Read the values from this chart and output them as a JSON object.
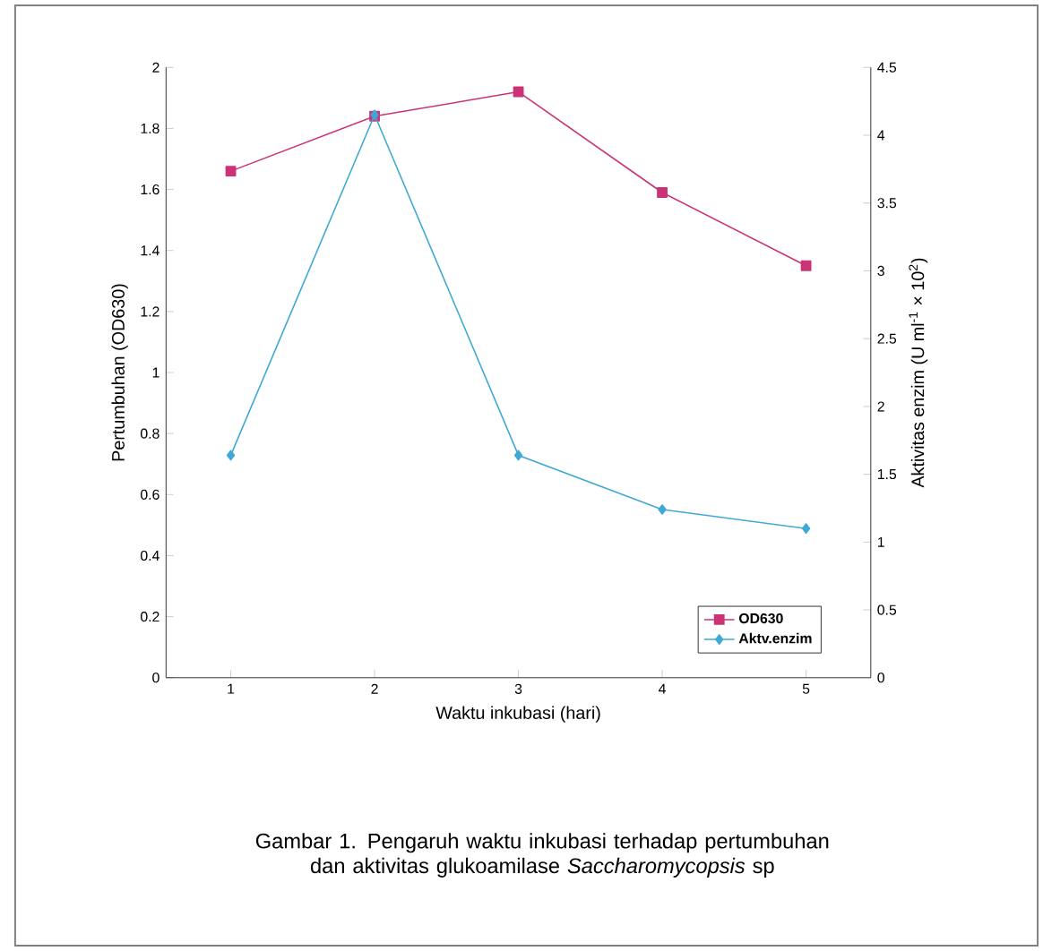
{
  "chart_data": {
    "type": "line",
    "xlabel": "Waktu inkubasi (hari)",
    "ylabel": "Pertumbuhan (OD630)",
    "y2label": "Aktivitas enzim (U ml$^{-1}$ × 10$^{2}$)",
    "categories": [
      "1",
      "2",
      "3",
      "4",
      "5"
    ],
    "series": [
      {
        "name": "OD630",
        "color": "#cc3377",
        "marker": "square",
        "values": [
          1.66,
          1.84,
          1.92,
          1.59,
          1.35
        ]
      },
      {
        "name": "Aktv.enzim",
        "color": "#3fa9d6",
        "marker": "diamond",
        "axis": "y2",
        "values": [
          1.64,
          4.15,
          1.64,
          1.24,
          1.1
        ]
      }
    ],
    "ylim": [
      0,
      2
    ],
    "yticks": [
      0,
      0.2,
      0.4,
      0.6,
      0.8,
      1,
      1.2,
      1.4,
      1.6,
      1.8,
      2
    ],
    "y2lim": [
      0,
      4.5
    ],
    "y2ticks": [
      0,
      0.5,
      1,
      1.5,
      2,
      2.5,
      3,
      3.5,
      4,
      4.5
    ],
    "legend": "bottom right",
    "grid": false,
    "line_style": "solid",
    "annotations": [
      "Gambar 1. Pengaruh waktu inkubasi terhadap pertumbuhan dan aktivitas glukoamilase *Saccharomycopsis* sp"
    ]
  }
}
